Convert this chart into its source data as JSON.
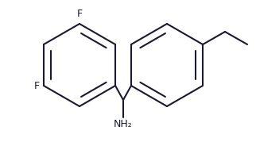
{
  "bg_color": "#ffffff",
  "line_color": "#1a1a2e",
  "line_width": 1.5,
  "font_size_label": 9,
  "figsize": [
    3.22,
    1.79
  ],
  "dpi": 100,
  "F_top": "F",
  "F_left": "F",
  "NH2_label": "NH₂"
}
